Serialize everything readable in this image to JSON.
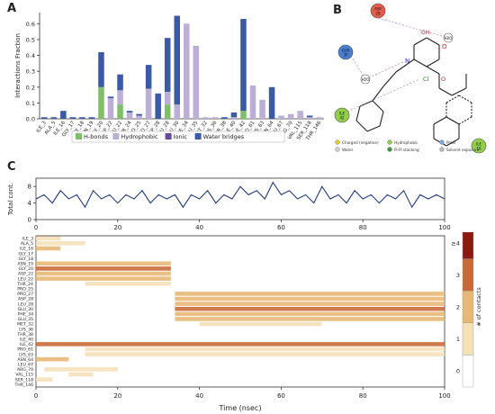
{
  "panels": {
    "a": "A",
    "b": "B",
    "c": "C"
  },
  "chart_data": [
    {
      "type": "bar",
      "panel": "A",
      "stacked": true,
      "ylabel": "Interactions Fraction",
      "ylim": [
        0,
        0.67
      ],
      "yticks": [
        0.0,
        0.1,
        0.2,
        0.3,
        0.4,
        0.5,
        0.6
      ],
      "grid": false,
      "legend_position": "bottom",
      "categories": [
        "ILE_3",
        "ALA_5",
        "ILE_16",
        "GLY_17",
        "GLY_18",
        "ASN_19",
        "GLY_20",
        "ASP_22",
        "LEU_22",
        "THR_24",
        "PRO_25",
        "PRO_27",
        "ASP_28",
        "LEU_28",
        "GLU_30",
        "PHE_34",
        "GLU_35",
        "MET_32",
        "LYS_36",
        "THR_38",
        "ILE_40",
        "ILE_42",
        "PRO_61",
        "LYS_63",
        "ASN_64",
        "LEU_67",
        "ARG_70",
        "VAL_115",
        "SER_118",
        "THR_146"
      ],
      "series": [
        {
          "name": "H-bonds",
          "color": "#7fbf6a",
          "values": [
            0,
            0,
            0,
            0,
            0,
            0,
            0.2,
            0,
            0.09,
            0,
            0,
            0,
            0,
            0.09,
            0,
            0,
            0,
            0,
            0,
            0,
            0,
            0.05,
            0,
            0,
            0,
            0,
            0,
            0,
            0,
            0
          ]
        },
        {
          "name": "Hydrophobic",
          "color": "#bcaed6",
          "values": [
            0,
            0,
            0,
            0,
            0,
            0,
            0,
            0.13,
            0.09,
            0.04,
            0.02,
            0.19,
            0,
            0.08,
            0.09,
            0.6,
            0.46,
            0.01,
            0.01,
            0,
            0.01,
            0,
            0.21,
            0.12,
            0,
            0.02,
            0.03,
            0.05,
            0.01,
            0.01
          ]
        },
        {
          "name": "Ionic",
          "color": "#6a4a9a",
          "values": [
            0,
            0,
            0,
            0,
            0,
            0,
            0,
            0,
            0,
            0,
            0,
            0,
            0,
            0,
            0,
            0,
            0,
            0,
            0,
            0,
            0,
            0,
            0,
            0,
            0,
            0,
            0,
            0,
            0,
            0
          ]
        },
        {
          "name": "Water bridges",
          "color": "#3b5aa6",
          "values": [
            0.01,
            0.01,
            0.05,
            0.01,
            0.01,
            0.01,
            0.22,
            0.01,
            0.1,
            0.01,
            0.01,
            0.15,
            0.16,
            0.34,
            0.56,
            0,
            0,
            0,
            0,
            0.01,
            0.03,
            0.58,
            0,
            0,
            0.2,
            0,
            0,
            0,
            0.01,
            0
          ]
        }
      ]
    },
    {
      "type": "line",
      "panel": "C-top",
      "ylabel": "Total cont.",
      "xlim": [
        0,
        100
      ],
      "ylim": [
        0,
        10
      ],
      "xticks": [
        0,
        20,
        40,
        60,
        80,
        100
      ],
      "yticks": [
        0,
        4,
        8
      ],
      "series": [
        {
          "name": "",
          "color": "#1f3a7a",
          "x": [
            0,
            2,
            4,
            6,
            8,
            10,
            12,
            14,
            16,
            18,
            20,
            22,
            24,
            26,
            28,
            30,
            32,
            34,
            36,
            38,
            40,
            42,
            44,
            46,
            48,
            50,
            52,
            54,
            56,
            58,
            60,
            62,
            64,
            66,
            68,
            70,
            72,
            74,
            76,
            78,
            80,
            82,
            84,
            86,
            88,
            90,
            92,
            94,
            96,
            98,
            100
          ],
          "values": [
            5,
            6,
            4,
            7,
            5,
            6,
            3,
            7,
            5,
            6,
            4,
            6,
            5,
            7,
            4,
            6,
            5,
            6,
            3,
            6,
            5,
            7,
            4,
            6,
            5,
            8,
            6,
            7,
            5,
            9,
            6,
            7,
            5,
            6,
            4,
            8,
            5,
            6,
            4,
            7,
            5,
            6,
            4,
            6,
            5,
            7,
            3,
            6,
            5,
            6,
            5
          ]
        }
      ]
    },
    {
      "type": "heatmap",
      "panel": "C-bottom",
      "xlabel": "Time (nsec)",
      "xlim": [
        0,
        100
      ],
      "xticks": [
        0,
        20,
        40,
        60,
        80,
        100
      ],
      "colorbar_label": "# of contacts",
      "colorbar_ticks": [
        "0",
        "1",
        "2",
        "3",
        "≥4"
      ],
      "colorbar_colors": [
        "#ffffff",
        "#f4e1b8",
        "#e8b877",
        "#c96b38",
        "#8a1a10"
      ],
      "rows": [
        "ILE_3",
        "ALA_5",
        "ILE_16",
        "GLY_17",
        "GLY_18",
        "ASN_19",
        "GLY_20",
        "ASP_22",
        "LEU_22",
        "THR_24",
        "PRO_25",
        "PRO_27",
        "ASP_28",
        "LEU_28",
        "GLU_30",
        "PHE_34",
        "GLU_35",
        "MET_32",
        "LYS_36",
        "THR_38",
        "ILE_40",
        "ILE_42",
        "PRO_61",
        "LYS_63",
        "ASN_64",
        "LEU_67",
        "ARG_70",
        "VAL_115",
        "SER_118",
        "THR_146"
      ],
      "segments": [
        {
          "row": 0,
          "start": 0,
          "end": 6,
          "level": 1
        },
        {
          "row": 1,
          "start": 0,
          "end": 12,
          "level": 1
        },
        {
          "row": 2,
          "start": 0,
          "end": 6,
          "level": 2
        },
        {
          "row": 5,
          "start": 0,
          "end": 33,
          "level": 2
        },
        {
          "row": 6,
          "start": 0,
          "end": 33,
          "level": 3
        },
        {
          "row": 7,
          "start": 0,
          "end": 33,
          "level": 2
        },
        {
          "row": 8,
          "start": 0,
          "end": 33,
          "level": 2
        },
        {
          "row": 9,
          "start": 12,
          "end": 33,
          "level": 1
        },
        {
          "row": 11,
          "start": 34,
          "end": 100,
          "level": 2
        },
        {
          "row": 12,
          "start": 34,
          "end": 100,
          "level": 2
        },
        {
          "row": 13,
          "start": 34,
          "end": 100,
          "level": 2
        },
        {
          "row": 14,
          "start": 34,
          "end": 100,
          "level": 3
        },
        {
          "row": 15,
          "start": 34,
          "end": 100,
          "level": 2
        },
        {
          "row": 16,
          "start": 34,
          "end": 100,
          "level": 2
        },
        {
          "row": 17,
          "start": 40,
          "end": 70,
          "level": 1
        },
        {
          "row": 21,
          "start": 0,
          "end": 100,
          "level": 3
        },
        {
          "row": 22,
          "start": 12,
          "end": 100,
          "level": 1
        },
        {
          "row": 23,
          "start": 12,
          "end": 100,
          "level": 1
        },
        {
          "row": 24,
          "start": 0,
          "end": 8,
          "level": 2
        },
        {
          "row": 26,
          "start": 2,
          "end": 20,
          "level": 1
        },
        {
          "row": 27,
          "start": 8,
          "end": 14,
          "level": 1
        },
        {
          "row": 28,
          "start": 0,
          "end": 4,
          "level": 1
        }
      ]
    }
  ],
  "molecule": {
    "atoms": [
      "OH",
      "O",
      "N",
      "Cl",
      "O"
    ],
    "residues": [
      {
        "label": "ASP\n28",
        "color": "#e55c4c"
      },
      {
        "label": "GLN\n30",
        "color": "#4a7fd0"
      },
      {
        "label": "ILE\n42",
        "color": "#8fcf4a"
      },
      {
        "label": "ILE\n16",
        "color": "#8fcf4a"
      },
      {
        "label": "H2O",
        "color": "#ffffff"
      },
      {
        "label": "H2O",
        "color": "#ffffff"
      }
    ],
    "legend": [
      {
        "label": "Charged (negative)",
        "color": "#e6c73a"
      },
      {
        "label": "Hydrophobic",
        "color": "#8fcf4a"
      },
      {
        "label": "Polar",
        "color": "#7fa6e0"
      },
      {
        "label": "Water",
        "color": "#cfcfcf"
      },
      {
        "label": "Pi-Pi stacking",
        "color": "#3a9a3a"
      },
      {
        "label": "Solvent exposure",
        "color": "#bbbbbb"
      }
    ]
  }
}
